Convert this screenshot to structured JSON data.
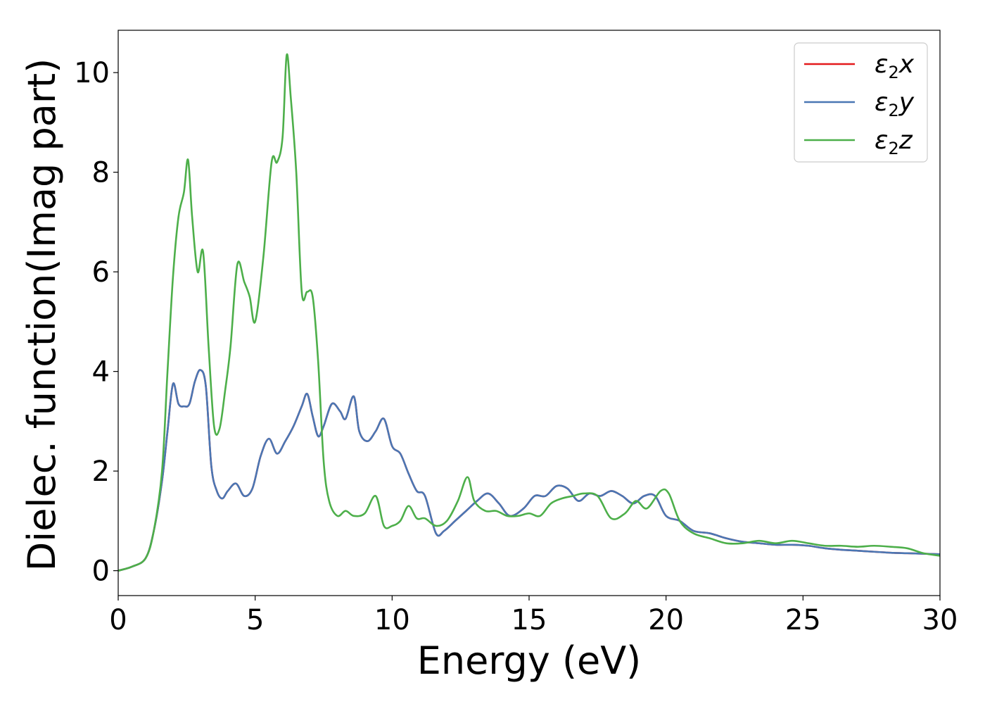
{
  "chart_data": {
    "type": "line",
    "xlabel": "Energy (eV)",
    "ylabel": "Dielec. function(Imag part)",
    "xlim": [
      0,
      30
    ],
    "ylim": [
      -0.5,
      10.85
    ],
    "xticks": [
      0,
      5,
      10,
      15,
      20,
      25,
      30
    ],
    "yticks": [
      0,
      2,
      4,
      6,
      8,
      10
    ],
    "grid": false,
    "legend_position": "top-right",
    "series": [
      {
        "name": "ε2x",
        "legend_symbol": "ε",
        "legend_sub": "2",
        "legend_var": "x",
        "color": "#e41a1c",
        "x": [
          0,
          0.5,
          1.0,
          1.3,
          1.6,
          1.8,
          2.0,
          2.2,
          2.4,
          2.6,
          2.8,
          3.0,
          3.2,
          3.4,
          3.6,
          3.8,
          4.0,
          4.3,
          4.6,
          4.9,
          5.2,
          5.5,
          5.8,
          6.1,
          6.4,
          6.7,
          6.9,
          7.1,
          7.3,
          7.5,
          7.8,
          8.1,
          8.3,
          8.6,
          8.8,
          9.1,
          9.4,
          9.7,
          10.0,
          10.3,
          10.6,
          10.9,
          11.2,
          11.6,
          11.9,
          12.3,
          12.7,
          13.1,
          13.5,
          13.9,
          14.3,
          14.8,
          15.2,
          15.6,
          16.0,
          16.4,
          16.8,
          17.2,
          17.6,
          18.0,
          18.4,
          18.8,
          19.2,
          19.6,
          20.0,
          20.5,
          21.0,
          21.6,
          22.2,
          22.8,
          23.4,
          24.0,
          24.6,
          25.2,
          25.8,
          26.4,
          27.0,
          27.6,
          28.2,
          28.8,
          29.4,
          30
        ],
        "y": [
          0,
          0.08,
          0.25,
          0.8,
          1.8,
          2.8,
          3.75,
          3.35,
          3.3,
          3.35,
          3.8,
          4.03,
          3.7,
          2.1,
          1.6,
          1.45,
          1.6,
          1.75,
          1.5,
          1.65,
          2.3,
          2.65,
          2.35,
          2.6,
          2.9,
          3.3,
          3.55,
          3.1,
          2.7,
          2.9,
          3.35,
          3.2,
          3.05,
          3.5,
          2.8,
          2.6,
          2.8,
          3.05,
          2.5,
          2.35,
          1.95,
          1.6,
          1.5,
          0.75,
          0.8,
          1.0,
          1.2,
          1.4,
          1.55,
          1.35,
          1.1,
          1.25,
          1.5,
          1.5,
          1.7,
          1.65,
          1.4,
          1.55,
          1.5,
          1.6,
          1.5,
          1.35,
          1.5,
          1.5,
          1.1,
          1.0,
          0.8,
          0.75,
          0.65,
          0.58,
          0.55,
          0.52,
          0.52,
          0.5,
          0.45,
          0.42,
          0.4,
          0.38,
          0.36,
          0.35,
          0.34,
          0.33
        ]
      },
      {
        "name": "ε2y",
        "legend_symbol": "ε",
        "legend_sub": "2",
        "legend_var": "y",
        "color": "#4a77b4",
        "x": [
          0,
          0.5,
          1.0,
          1.3,
          1.6,
          1.8,
          2.0,
          2.2,
          2.4,
          2.6,
          2.8,
          3.0,
          3.2,
          3.4,
          3.6,
          3.8,
          4.0,
          4.3,
          4.6,
          4.9,
          5.2,
          5.5,
          5.8,
          6.1,
          6.4,
          6.7,
          6.9,
          7.1,
          7.3,
          7.5,
          7.8,
          8.1,
          8.3,
          8.6,
          8.8,
          9.1,
          9.4,
          9.7,
          10.0,
          10.3,
          10.6,
          10.9,
          11.2,
          11.6,
          11.9,
          12.3,
          12.7,
          13.1,
          13.5,
          13.9,
          14.3,
          14.8,
          15.2,
          15.6,
          16.0,
          16.4,
          16.8,
          17.2,
          17.6,
          18.0,
          18.4,
          18.8,
          19.2,
          19.6,
          20.0,
          20.5,
          21.0,
          21.6,
          22.2,
          22.8,
          23.4,
          24.0,
          24.6,
          25.2,
          25.8,
          26.4,
          27.0,
          27.6,
          28.2,
          28.8,
          29.4,
          30
        ],
        "y": [
          0,
          0.08,
          0.25,
          0.8,
          1.8,
          2.8,
          3.75,
          3.35,
          3.3,
          3.35,
          3.8,
          4.03,
          3.7,
          2.1,
          1.6,
          1.45,
          1.6,
          1.75,
          1.5,
          1.65,
          2.3,
          2.65,
          2.35,
          2.6,
          2.9,
          3.3,
          3.55,
          3.1,
          2.7,
          2.9,
          3.35,
          3.2,
          3.05,
          3.5,
          2.8,
          2.6,
          2.8,
          3.05,
          2.5,
          2.35,
          1.95,
          1.6,
          1.5,
          0.75,
          0.8,
          1.0,
          1.2,
          1.4,
          1.55,
          1.35,
          1.1,
          1.25,
          1.5,
          1.5,
          1.7,
          1.65,
          1.4,
          1.55,
          1.5,
          1.6,
          1.5,
          1.35,
          1.5,
          1.5,
          1.1,
          1.0,
          0.8,
          0.75,
          0.65,
          0.58,
          0.55,
          0.52,
          0.52,
          0.5,
          0.45,
          0.42,
          0.4,
          0.38,
          0.36,
          0.35,
          0.34,
          0.33
        ]
      },
      {
        "name": "ε2z",
        "legend_symbol": "ε",
        "legend_sub": "2",
        "legend_var": "z",
        "color": "#4daf4a",
        "x": [
          0,
          0.5,
          1.0,
          1.3,
          1.6,
          1.8,
          2.0,
          2.2,
          2.4,
          2.55,
          2.7,
          2.9,
          3.1,
          3.3,
          3.5,
          3.7,
          3.9,
          4.1,
          4.35,
          4.6,
          4.8,
          5.0,
          5.3,
          5.6,
          5.8,
          6.0,
          6.15,
          6.3,
          6.5,
          6.7,
          6.9,
          7.1,
          7.3,
          7.5,
          7.7,
          8.0,
          8.3,
          8.6,
          9.0,
          9.4,
          9.7,
          10.0,
          10.3,
          10.6,
          10.9,
          11.2,
          11.6,
          12.0,
          12.4,
          12.75,
          13.0,
          13.4,
          13.8,
          14.2,
          14.6,
          15.0,
          15.4,
          15.8,
          16.2,
          16.6,
          17.0,
          17.5,
          18.0,
          18.5,
          18.9,
          19.3,
          19.8,
          20.1,
          20.5,
          21.0,
          21.6,
          22.2,
          22.8,
          23.4,
          24.0,
          24.6,
          25.2,
          25.8,
          26.4,
          27.0,
          27.6,
          28.2,
          28.8,
          29.4,
          30
        ],
        "y": [
          0,
          0.08,
          0.25,
          0.8,
          2.0,
          4.0,
          5.9,
          7.1,
          7.6,
          8.25,
          7.1,
          6.0,
          6.4,
          4.5,
          2.9,
          2.85,
          3.6,
          4.5,
          6.15,
          5.8,
          5.5,
          5.0,
          6.3,
          8.2,
          8.2,
          8.7,
          10.35,
          9.5,
          8.0,
          5.6,
          5.6,
          5.5,
          4.2,
          2.2,
          1.4,
          1.1,
          1.2,
          1.1,
          1.15,
          1.5,
          0.9,
          0.9,
          1.0,
          1.3,
          1.05,
          1.05,
          0.9,
          1.0,
          1.4,
          1.88,
          1.4,
          1.2,
          1.2,
          1.1,
          1.1,
          1.15,
          1.1,
          1.35,
          1.45,
          1.5,
          1.55,
          1.5,
          1.05,
          1.15,
          1.4,
          1.25,
          1.6,
          1.55,
          1.0,
          0.75,
          0.65,
          0.55,
          0.55,
          0.6,
          0.55,
          0.6,
          0.55,
          0.5,
          0.5,
          0.48,
          0.5,
          0.48,
          0.45,
          0.35,
          0.3
        ]
      }
    ]
  }
}
